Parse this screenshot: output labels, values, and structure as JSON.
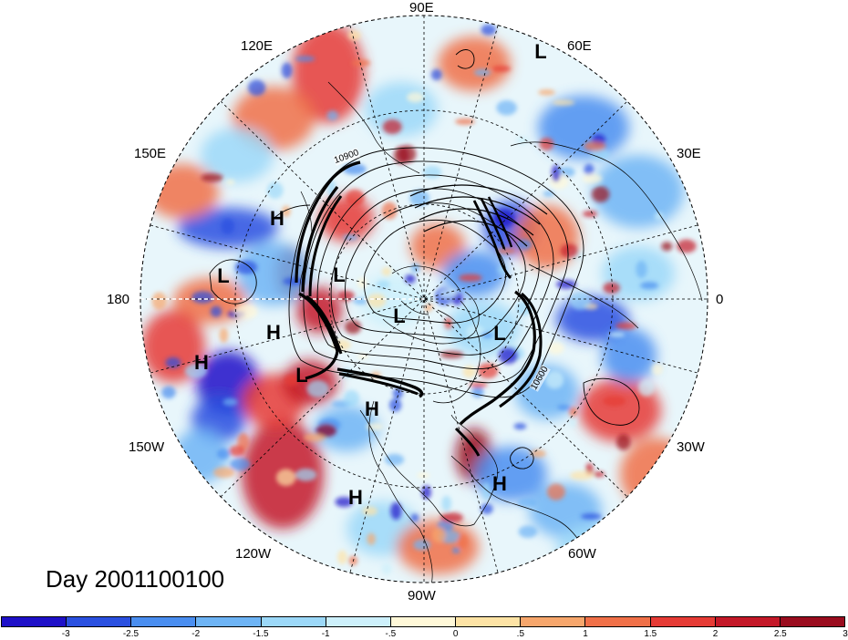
{
  "title": "Day 2001100100",
  "longitude_labels": {
    "lon_90e": "90E",
    "lon_60e": "60E",
    "lon_120e": "120E",
    "lon_30e": "30E",
    "lon_150e": "150E",
    "lon_0": "0",
    "lon_180": "180",
    "lon_30w": "30W",
    "lon_150w": "150W",
    "lon_60w": "60W",
    "lon_120w": "120W",
    "lon_90w": "90W"
  },
  "pressure_centers": [
    {
      "label": "L",
      "lon_deg": 60,
      "lat_deg": 30
    },
    {
      "label": "H",
      "lon_deg": 155,
      "lat_deg": 48
    },
    {
      "label": "L",
      "lon_deg": 175,
      "lat_deg": 38
    },
    {
      "label": "L",
      "lon_deg": 150,
      "lat_deg": 70
    },
    {
      "label": "H",
      "lon_deg": -160,
      "lat_deg": 48
    },
    {
      "label": "L",
      "lon_deg": -170,
      "lat_deg": 80
    },
    {
      "label": "L",
      "lon_deg": 10,
      "lat_deg": 72
    },
    {
      "label": "H",
      "lon_deg": -150,
      "lat_deg": 28
    },
    {
      "label": "L",
      "lon_deg": -140,
      "lat_deg": 60
    },
    {
      "label": "H",
      "lon_deg": -110,
      "lat_deg": 68
    },
    {
      "label": "H",
      "lon_deg": -110,
      "lat_deg": 40
    },
    {
      "label": "H",
      "lon_deg": -55,
      "lat_deg": 40
    }
  ],
  "contour_labels": [
    "10900",
    "10600"
  ],
  "colorbar": {
    "colors": [
      "#1e10c8",
      "#2a50e0",
      "#4a8ef0",
      "#6eb4f5",
      "#9cd8f8",
      "#cdf0fb",
      "#fff8d8",
      "#fde3a5",
      "#f6a66c",
      "#f07048",
      "#e63b35",
      "#c41828",
      "#9a0c1e"
    ],
    "tick_labels": [
      "-3",
      "-2.5",
      "-2",
      "-1.5",
      "-1",
      "-.5",
      "0",
      ".5",
      "1",
      "1.5",
      "2",
      "2.5",
      "3"
    ]
  }
}
